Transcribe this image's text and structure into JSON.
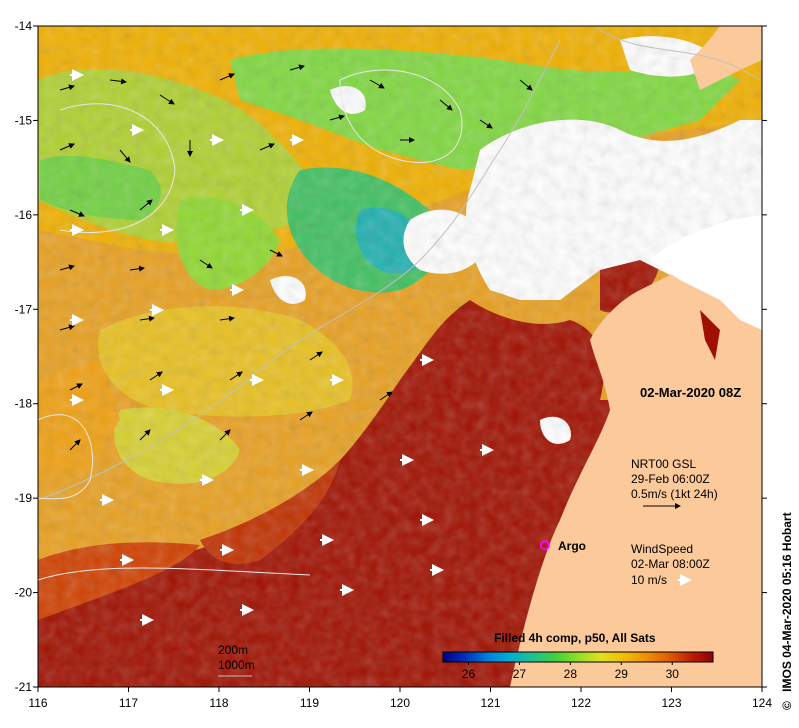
{
  "map": {
    "date_label": "02-Mar-2020 08Z",
    "colorbar": {
      "title": "Filled 4h comp, p50, All Sats",
      "ticks": [
        "26",
        "27",
        "28",
        "29",
        "30"
      ],
      "min": 25.5,
      "max": 30.8,
      "colors": [
        "#000080",
        "#0030c0",
        "#0080e0",
        "#00b0d0",
        "#20c090",
        "#40d040",
        "#90e020",
        "#e0e020",
        "#f0c000",
        "#f09000",
        "#e06000",
        "#c02000",
        "#900000"
      ]
    },
    "x_ticks": [
      "116",
      "117",
      "118",
      "119",
      "120",
      "121",
      "122",
      "123",
      "124"
    ],
    "y_ticks": [
      "-14",
      "-15",
      "-16",
      "-17",
      "-18",
      "-19",
      "-20",
      "-21"
    ],
    "lon_range": [
      116,
      124
    ],
    "lat_range": [
      -21,
      -14
    ],
    "current_legend": {
      "line1": "NRT00 GSL",
      "line2": "29-Feb 06:00Z",
      "line3": "0.5m/s (1kt 24h)"
    },
    "wind_legend": {
      "line1": "WindSpeed",
      "line2": "02-Mar 08:00Z",
      "line3": "10 m/s"
    },
    "argo": {
      "label": "Argo",
      "lon": 121.6,
      "lat": -19.5,
      "color": "#ff00ff"
    },
    "bathymetry_legend": {
      "line1": "200m",
      "line2": "1000m"
    },
    "credit": "IMOS 04-Mar-2020 05:16 Hobart",
    "copyright_symbol": "©",
    "land_color": "#fcc99a",
    "cloud_color": "#ffffff"
  }
}
